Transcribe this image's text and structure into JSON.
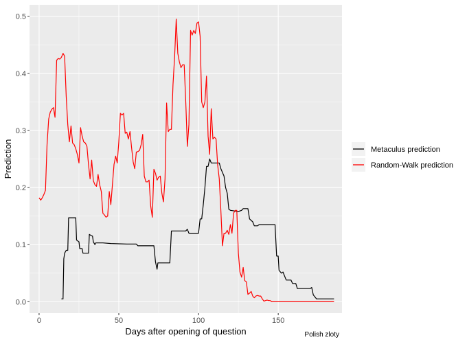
{
  "chart_data": {
    "type": "line",
    "title": "",
    "xlabel": "Days after opening of question",
    "ylabel": "Prediction",
    "caption": "Polish zloty",
    "xlim": [
      -6,
      190
    ],
    "ylim": [
      -0.02,
      0.52
    ],
    "x_ticks": [
      0,
      50,
      100,
      150
    ],
    "y_ticks": [
      0.0,
      0.1,
      0.2,
      0.3,
      0.4,
      0.5
    ],
    "x_tick_labels": [
      "0",
      "50",
      "100",
      "150"
    ],
    "y_tick_labels": [
      "0.0",
      "0.1",
      "0.2",
      "0.3",
      "0.4",
      "0.5"
    ],
    "grid": true,
    "legend_position": "right",
    "colors": {
      "panel": "#ebebeb",
      "grid_major": "#ffffff",
      "metaculus": "#000000",
      "random_walk": "#ff0000"
    },
    "series": [
      {
        "name": "Metaculus prediction",
        "color": "#000000",
        "points": [
          [
            14,
            0.005
          ],
          [
            15,
            0.005
          ],
          [
            15.5,
            0.075
          ],
          [
            16,
            0.085
          ],
          [
            17,
            0.09
          ],
          [
            18,
            0.09
          ],
          [
            18.5,
            0.147
          ],
          [
            20,
            0.147
          ],
          [
            22,
            0.147
          ],
          [
            23,
            0.147
          ],
          [
            23.5,
            0.108
          ],
          [
            25,
            0.105
          ],
          [
            25.5,
            0.093
          ],
          [
            27,
            0.093
          ],
          [
            27.5,
            0.085
          ],
          [
            31,
            0.085
          ],
          [
            31.5,
            0.118
          ],
          [
            32.5,
            0.116
          ],
          [
            33.5,
            0.115
          ],
          [
            34,
            0.105
          ],
          [
            35,
            0.1
          ],
          [
            35.5,
            0.103
          ],
          [
            40,
            0.103
          ],
          [
            45,
            0.102
          ],
          [
            55,
            0.101
          ],
          [
            61,
            0.101
          ],
          [
            62,
            0.098
          ],
          [
            70,
            0.098
          ],
          [
            72,
            0.098
          ],
          [
            73,
            0.07
          ],
          [
            74,
            0.057
          ],
          [
            74.5,
            0.068
          ],
          [
            80,
            0.068
          ],
          [
            82,
            0.068
          ],
          [
            83,
            0.124
          ],
          [
            90,
            0.124
          ],
          [
            92,
            0.124
          ],
          [
            93,
            0.127
          ],
          [
            94,
            0.12
          ],
          [
            100,
            0.12
          ],
          [
            101,
            0.145
          ],
          [
            102,
            0.145
          ],
          [
            103,
            0.17
          ],
          [
            104,
            0.2
          ],
          [
            105,
            0.237
          ],
          [
            106,
            0.237
          ],
          [
            107,
            0.25
          ],
          [
            108,
            0.243
          ],
          [
            113,
            0.243
          ],
          [
            114,
            0.233
          ],
          [
            116,
            0.22
          ],
          [
            117,
            0.2
          ],
          [
            118,
            0.19
          ],
          [
            119,
            0.162
          ],
          [
            120,
            0.16
          ],
          [
            125,
            0.158
          ],
          [
            127,
            0.16
          ],
          [
            128,
            0.163
          ],
          [
            131,
            0.163
          ],
          [
            132,
            0.145
          ],
          [
            134,
            0.14
          ],
          [
            135,
            0.133
          ],
          [
            137,
            0.133
          ],
          [
            138,
            0.135
          ],
          [
            148,
            0.135
          ],
          [
            149,
            0.08
          ],
          [
            150,
            0.08
          ],
          [
            150.5,
            0.055
          ],
          [
            152,
            0.05
          ],
          [
            153,
            0.052
          ],
          [
            154,
            0.045
          ],
          [
            155,
            0.038
          ],
          [
            158,
            0.038
          ],
          [
            159,
            0.032
          ],
          [
            161,
            0.032
          ],
          [
            162,
            0.023
          ],
          [
            170,
            0.023
          ],
          [
            171,
            0.025
          ],
          [
            172,
            0.012
          ],
          [
            174,
            0.005
          ],
          [
            185,
            0.005
          ]
        ]
      },
      {
        "name": "Random-Walk prediction",
        "color": "#ff0000",
        "points": [
          [
            0,
            0.182
          ],
          [
            1,
            0.178
          ],
          [
            2,
            0.182
          ],
          [
            3,
            0.188
          ],
          [
            4,
            0.195
          ],
          [
            5,
            0.275
          ],
          [
            6,
            0.32
          ],
          [
            7,
            0.332
          ],
          [
            8,
            0.337
          ],
          [
            9,
            0.34
          ],
          [
            10,
            0.323
          ],
          [
            11,
            0.423
          ],
          [
            12,
            0.426
          ],
          [
            13,
            0.425
          ],
          [
            14,
            0.428
          ],
          [
            15,
            0.435
          ],
          [
            16,
            0.43
          ],
          [
            17,
            0.36
          ],
          [
            18,
            0.31
          ],
          [
            19,
            0.28
          ],
          [
            20,
            0.308
          ],
          [
            21,
            0.278
          ],
          [
            22,
            0.275
          ],
          [
            23,
            0.268
          ],
          [
            24,
            0.258
          ],
          [
            25,
            0.243
          ],
          [
            26,
            0.305
          ],
          [
            27,
            0.29
          ],
          [
            28,
            0.28
          ],
          [
            29,
            0.278
          ],
          [
            30,
            0.272
          ],
          [
            31,
            0.24
          ],
          [
            32,
            0.215
          ],
          [
            33,
            0.248
          ],
          [
            34,
            0.212
          ],
          [
            35,
            0.205
          ],
          [
            36,
            0.202
          ],
          [
            37,
            0.223
          ],
          [
            38,
            0.205
          ],
          [
            39,
            0.193
          ],
          [
            40,
            0.155
          ],
          [
            41,
            0.152
          ],
          [
            42,
            0.148
          ],
          [
            43,
            0.15
          ],
          [
            44,
            0.193
          ],
          [
            45,
            0.17
          ],
          [
            46,
            0.205
          ],
          [
            47,
            0.24
          ],
          [
            48,
            0.255
          ],
          [
            49,
            0.243
          ],
          [
            50,
            0.28
          ],
          [
            51,
            0.33
          ],
          [
            52,
            0.327
          ],
          [
            53,
            0.33
          ],
          [
            54,
            0.295
          ],
          [
            55,
            0.297
          ],
          [
            56,
            0.285
          ],
          [
            57,
            0.298
          ],
          [
            58,
            0.27
          ],
          [
            59,
            0.245
          ],
          [
            60,
            0.233
          ],
          [
            61,
            0.262
          ],
          [
            62,
            0.263
          ],
          [
            63,
            0.265
          ],
          [
            64,
            0.275
          ],
          [
            65,
            0.293
          ],
          [
            66,
            0.22
          ],
          [
            67,
            0.21
          ],
          [
            68,
            0.21
          ],
          [
            69,
            0.213
          ],
          [
            70,
            0.168
          ],
          [
            71,
            0.148
          ],
          [
            72,
            0.232
          ],
          [
            73,
            0.225
          ],
          [
            74,
            0.213
          ],
          [
            75,
            0.218
          ],
          [
            76,
            0.22
          ],
          [
            77,
            0.19
          ],
          [
            78,
            0.175
          ],
          [
            79,
            0.215
          ],
          [
            80,
            0.348
          ],
          [
            81,
            0.298
          ],
          [
            82,
            0.302
          ],
          [
            83,
            0.302
          ],
          [
            84,
            0.38
          ],
          [
            85,
            0.43
          ],
          [
            86,
            0.495
          ],
          [
            87,
            0.435
          ],
          [
            88,
            0.42
          ],
          [
            89,
            0.41
          ],
          [
            90,
            0.415
          ],
          [
            91,
            0.415
          ],
          [
            92,
            0.35
          ],
          [
            93,
            0.272
          ],
          [
            94,
            0.31
          ],
          [
            95,
            0.475
          ],
          [
            96,
            0.467
          ],
          [
            97,
            0.475
          ],
          [
            98,
            0.47
          ],
          [
            99,
            0.488
          ],
          [
            100,
            0.49
          ],
          [
            101,
            0.465
          ],
          [
            102,
            0.35
          ],
          [
            103,
            0.34
          ],
          [
            104,
            0.35
          ],
          [
            105,
            0.395
          ],
          [
            106,
            0.29
          ],
          [
            107,
            0.258
          ],
          [
            108,
            0.338
          ],
          [
            109,
            0.285
          ],
          [
            110,
            0.288
          ],
          [
            111,
            0.285
          ],
          [
            112,
            0.24
          ],
          [
            113,
            0.215
          ],
          [
            114,
            0.16
          ],
          [
            115,
            0.098
          ],
          [
            116,
            0.12
          ],
          [
            117,
            0.12
          ],
          [
            118,
            0.125
          ],
          [
            119,
            0.118
          ],
          [
            120,
            0.135
          ],
          [
            121,
            0.12
          ],
          [
            122,
            0.155
          ],
          [
            123,
            0.16
          ],
          [
            124,
            0.16
          ],
          [
            125,
            0.085
          ],
          [
            126,
            0.052
          ],
          [
            127,
            0.043
          ],
          [
            128,
            0.06
          ],
          [
            129,
            0.037
          ],
          [
            130,
            0.035
          ],
          [
            131,
            0.013
          ],
          [
            132,
            0.015
          ],
          [
            133,
            0.018
          ],
          [
            134,
            0.01
          ],
          [
            135,
            0.007
          ],
          [
            136,
            0.01
          ],
          [
            137,
            0.011
          ],
          [
            138,
            0.01
          ],
          [
            139,
            0.01
          ],
          [
            140,
            0.005
          ],
          [
            141,
            0.001
          ],
          [
            142,
            0.002
          ],
          [
            143,
            0.003
          ],
          [
            144,
            0.002
          ],
          [
            145,
            0.002
          ],
          [
            146,
            0.0
          ],
          [
            147,
            0.0
          ],
          [
            150,
            0.0
          ],
          [
            160,
            0.0
          ],
          [
            170,
            0.0
          ],
          [
            185,
            0.0
          ]
        ]
      }
    ]
  }
}
